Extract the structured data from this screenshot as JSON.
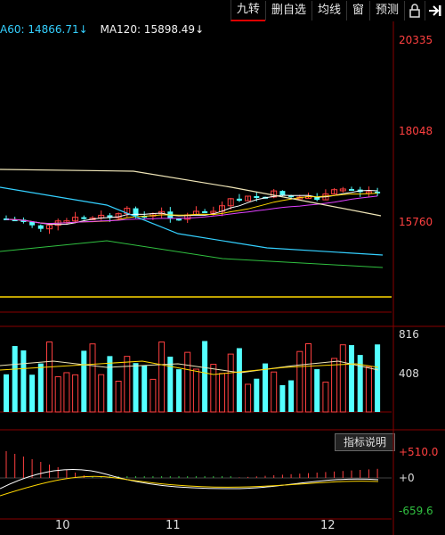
{
  "toolbar": {
    "items": [
      {
        "label": "九转"
      },
      {
        "label": "删自选"
      },
      {
        "label": "均线"
      },
      {
        "label": "窗"
      },
      {
        "label": "预测"
      }
    ]
  },
  "ma": {
    "ma60_label": "A60: 14866.71↓",
    "ma120_label": "MA120: 15898.49↓"
  },
  "price_axis": {
    "top": "20335",
    "mid": "18048",
    "low": "15760"
  },
  "volume_axis": {
    "high": "816",
    "mid": "408"
  },
  "macd_axis": {
    "high": "+510.0",
    "zero": "+0",
    "low": "-659.6"
  },
  "indicator_help": "指标说明",
  "dates": [
    "10",
    "11",
    "12"
  ],
  "colors": {
    "up": "#ff4040",
    "down": "#54ffff",
    "ma_white": "#f0e6b8",
    "ma_cyan": "#34d0ff",
    "ma_yellow": "#ffd700",
    "ma_pink": "#e040ff",
    "ma_green": "#30c040"
  }
}
